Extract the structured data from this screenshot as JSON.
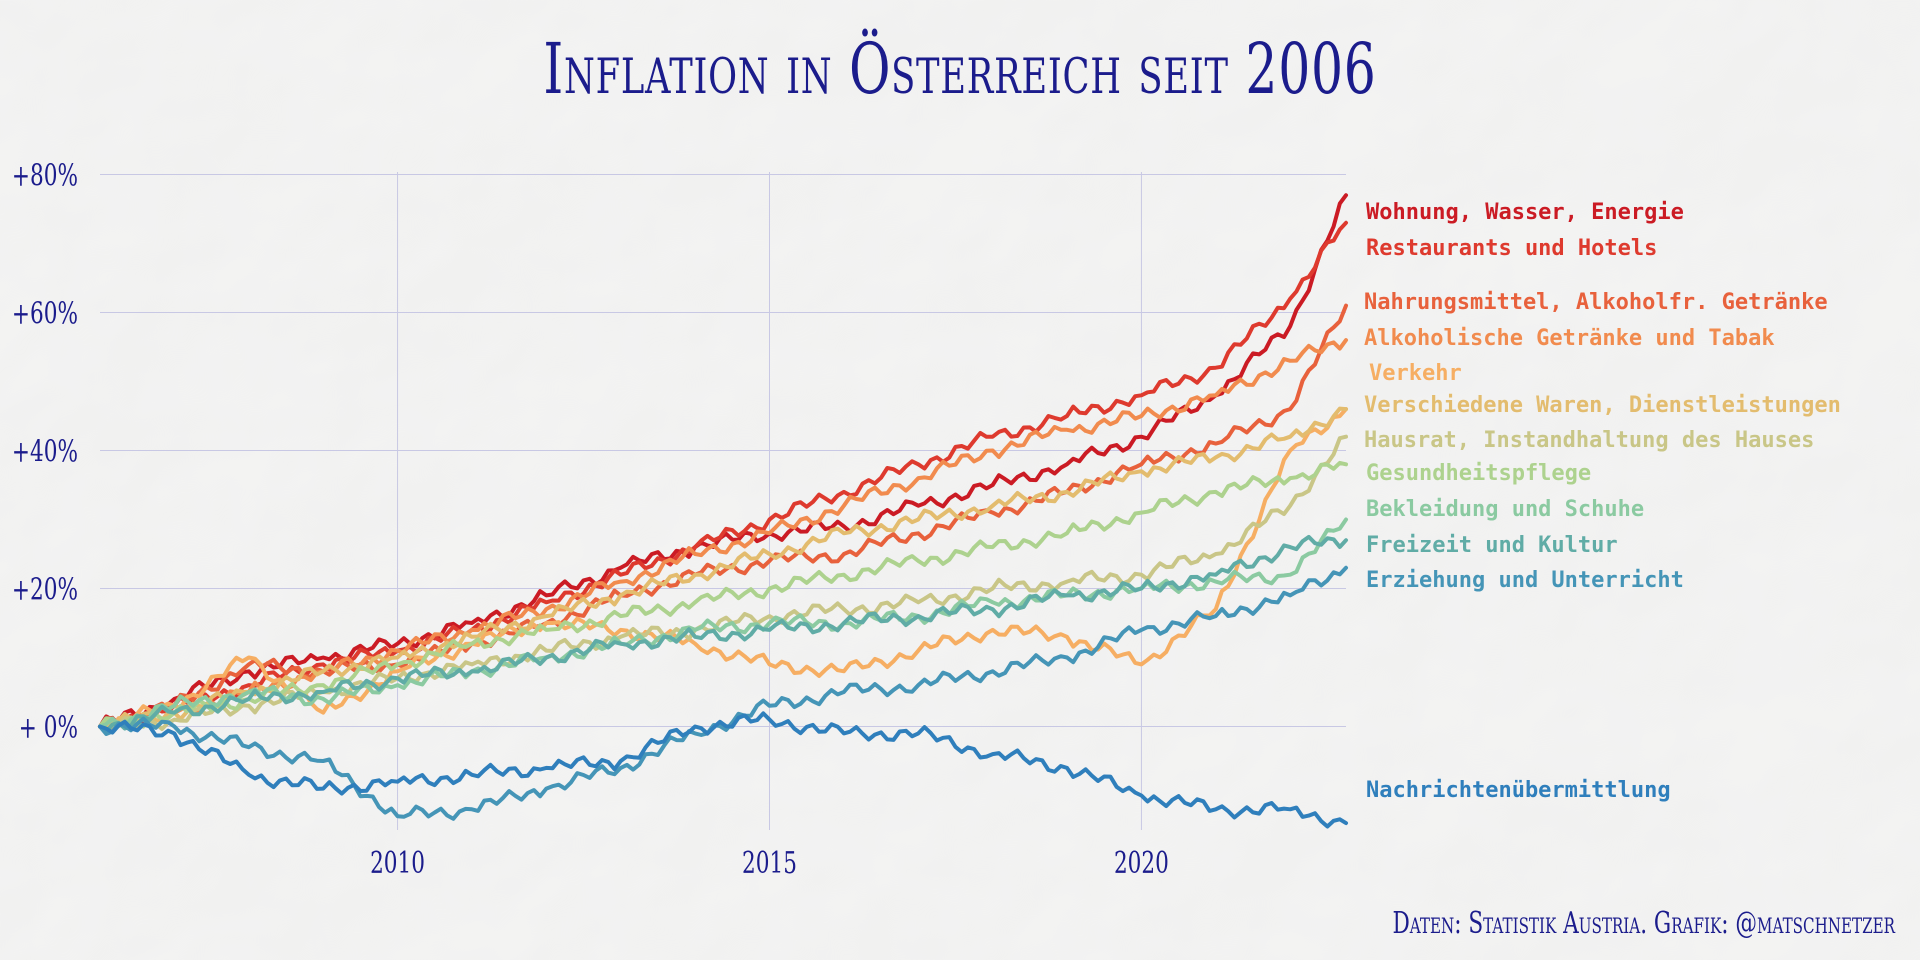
{
  "title": "Inflation in Österreich seit 2006",
  "caption": "Daten: Statistik Austria. Grafik: @matschnetzer",
  "colors": {
    "title": "#1b1c8c",
    "grid": "#c8c8e4",
    "background": "#f3f3f2"
  },
  "chart_data": {
    "type": "line",
    "title": "Inflation in Österreich seit 2006",
    "xlabel": "",
    "ylabel": "",
    "xlim": [
      2006.0,
      2022.75
    ],
    "ylim": [
      -15,
      85
    ],
    "x_ticks": [
      2010,
      2015,
      2020
    ],
    "x_tick_labels": [
      "2010",
      "2015",
      "2020"
    ],
    "y_ticks": [
      0,
      20,
      40,
      60,
      80
    ],
    "y_tick_labels": [
      "+ 0%",
      "+20%",
      "+40%",
      "+60%",
      "+80%"
    ],
    "grid": true,
    "legend": "direct labels at right end of lines",
    "x": [
      2006,
      2007,
      2008,
      2009,
      2010,
      2011,
      2012,
      2013,
      2014,
      2015,
      2016,
      2017,
      2018,
      2019,
      2020,
      2021,
      2022,
      2022.75
    ],
    "series": [
      {
        "name": "Wohnung, Wasser, Energie",
        "color": "#cb1b24",
        "values": [
          0,
          4,
          8,
          10,
          12,
          15,
          19,
          23,
          26,
          28,
          29,
          32,
          35,
          38,
          42,
          48,
          58,
          77
        ]
      },
      {
        "name": "Restaurants und Hotels",
        "color": "#de3a2e",
        "values": [
          0,
          3,
          6,
          9,
          11,
          14,
          18,
          22,
          26,
          30,
          34,
          38,
          42,
          45,
          48,
          52,
          62,
          73
        ]
      },
      {
        "name": "Nahrungsmittel, Alkoholfr. Getränke",
        "color": "#e8613c",
        "values": [
          0,
          3,
          9,
          8,
          9,
          12,
          15,
          19,
          22,
          24,
          25,
          28,
          31,
          34,
          38,
          41,
          46,
          61
        ]
      },
      {
        "name": "Alkoholische Getränke und Tabak",
        "color": "#f18b4e",
        "values": [
          0,
          2,
          5,
          8,
          11,
          14,
          17,
          21,
          25,
          28,
          32,
          36,
          40,
          43,
          45,
          48,
          53,
          56
        ]
      },
      {
        "name": "Verkehr",
        "color": "#f6ae63",
        "values": [
          0,
          3,
          10,
          2,
          8,
          12,
          15,
          14,
          12,
          9,
          8,
          11,
          14,
          13,
          9,
          17,
          40,
          46
        ]
      },
      {
        "name": "Verschiedene Waren, Dienstleistungen",
        "color": "#e3bc6e",
        "values": [
          0,
          2,
          5,
          8,
          10,
          13,
          16,
          19,
          22,
          25,
          28,
          30,
          32,
          34,
          37,
          39,
          42,
          46
        ]
      },
      {
        "name": "Hausrat, Instandhaltung des Hauses",
        "color": "#c9c687",
        "values": [
          0,
          1,
          3,
          5,
          7,
          9,
          11,
          13,
          14,
          16,
          17,
          18,
          20,
          21,
          22,
          25,
          32,
          42
        ]
      },
      {
        "name": "Gesundheitspflege",
        "color": "#add28e",
        "values": [
          0,
          2,
          4,
          6,
          9,
          12,
          14,
          16,
          18,
          20,
          22,
          24,
          26,
          28,
          31,
          34,
          36,
          38
        ]
      },
      {
        "name": "Bekleidung und Schuhe",
        "color": "#8bcaa1",
        "values": [
          0,
          3,
          5,
          4,
          6,
          8,
          10,
          12,
          14,
          15,
          15,
          16,
          18,
          19,
          20,
          21,
          22,
          30
        ]
      },
      {
        "name": "Freizeit und Kultur",
        "color": "#60aca6",
        "values": [
          0,
          2,
          4,
          5,
          7,
          8,
          10,
          12,
          13,
          14,
          15,
          16,
          17,
          19,
          20,
          22,
          26,
          27
        ]
      },
      {
        "name": "Erziehung und Unterricht",
        "color": "#4595b7",
        "values": [
          0,
          0,
          -3,
          -5,
          -13,
          -12,
          -9,
          -6,
          -1,
          3,
          5,
          6,
          8,
          10,
          14,
          16,
          19,
          23
        ]
      },
      {
        "name": "Nachrichtenübermittlung",
        "color": "#2f7fbc",
        "values": [
          0,
          -1,
          -7,
          -9,
          -8,
          -7,
          -6,
          -5,
          0,
          1,
          -1,
          -1,
          -4,
          -6,
          -10,
          -12,
          -12,
          -14
        ]
      }
    ]
  }
}
